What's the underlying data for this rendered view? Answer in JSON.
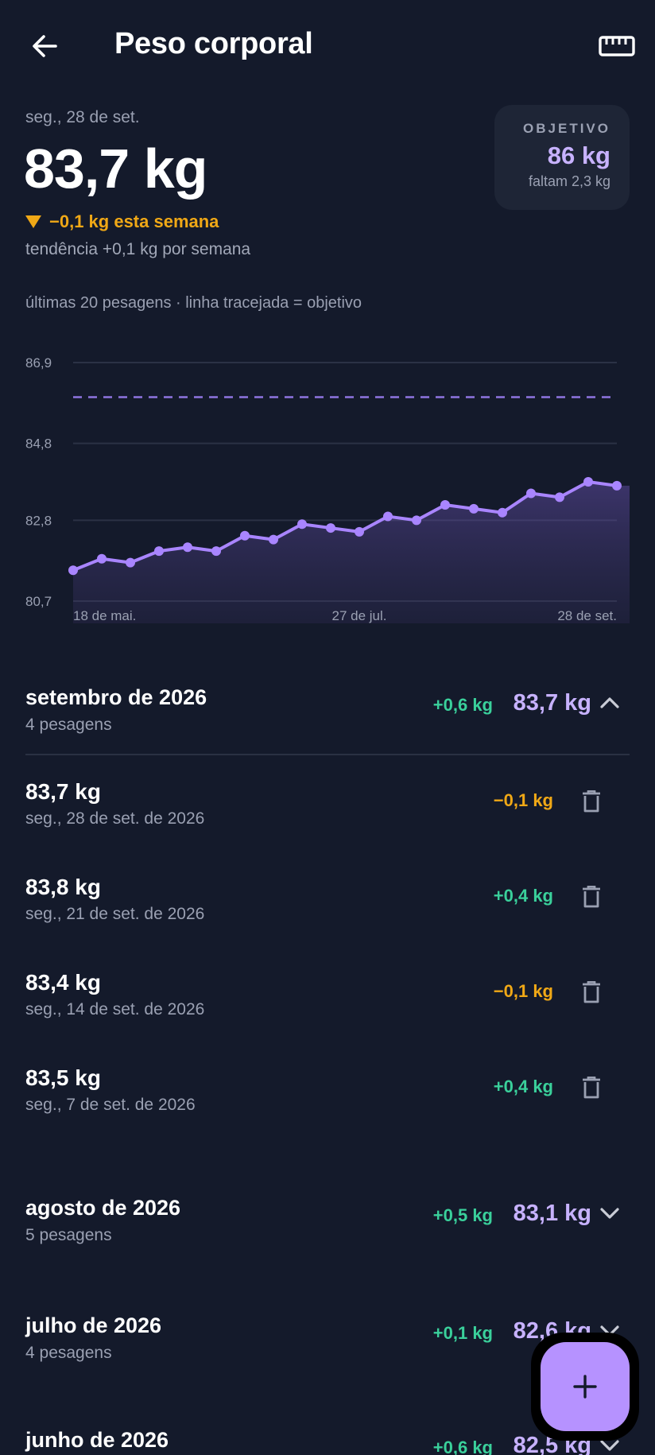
{
  "header": {
    "title": "Peso corporal",
    "back_icon": "arrow-left-icon",
    "action_icon": "ruler-icon"
  },
  "summary": {
    "date": "seg., 28 de set.",
    "weight": "83,7 kg",
    "week_change": "−0,1 kg esta semana",
    "trend": "tendência +0,1 kg por semana"
  },
  "goal": {
    "label": "OBJETIVO",
    "value": "86 kg",
    "remaining": "faltam 2,3 kg"
  },
  "chart_caption": "últimas 20 pesagens · linha tracejada = objetivo",
  "chart_data": {
    "type": "line",
    "y_tick_labels": [
      "86,9",
      "84,8",
      "82,8",
      "80,7"
    ],
    "y_ticks": [
      86.9,
      84.8,
      82.8,
      80.7
    ],
    "ylim": [
      80.7,
      86.9
    ],
    "x_tick_labels": [
      "18 de mai.",
      "27 de jul.",
      "28 de set."
    ],
    "goal": 86.0,
    "values": [
      81.5,
      81.8,
      81.7,
      82.0,
      82.1,
      82.0,
      82.4,
      82.3,
      82.7,
      82.6,
      82.5,
      82.9,
      82.8,
      83.2,
      83.1,
      83.0,
      83.5,
      83.4,
      83.8,
      83.7
    ],
    "grid": true,
    "line_color": "#a985ff",
    "goal_color": "#8f74e0"
  },
  "months": [
    {
      "title": "setembro de 2026",
      "count": "4 pesagens",
      "delta": "+0,6 kg",
      "weight": "83,7 kg",
      "expanded": true
    },
    {
      "title": "agosto de 2026",
      "count": "5 pesagens",
      "delta": "+0,5 kg",
      "weight": "83,1 kg",
      "expanded": false
    },
    {
      "title": "julho de 2026",
      "count": "4 pesagens",
      "delta": "+0,1 kg",
      "weight": "82,6 kg",
      "expanded": false
    },
    {
      "title": "junho de 2026",
      "count": "",
      "delta": "+0,6 kg",
      "weight": "82,5 kg",
      "expanded": false
    }
  ],
  "entries": [
    {
      "weight": "83,7 kg",
      "date": "seg., 28 de set. de 2026",
      "delta": "−0,1 kg"
    },
    {
      "weight": "83,8 kg",
      "date": "seg., 21 de set. de 2026",
      "delta": "+0,4 kg"
    },
    {
      "weight": "83,4 kg",
      "date": "seg., 14 de set. de 2026",
      "delta": "−0,1 kg"
    },
    {
      "weight": "83,5 kg",
      "date": "seg., 7 de set. de 2026",
      "delta": "+0,4 kg"
    }
  ],
  "fab_icon": "plus-icon",
  "colors": {
    "background": "#141a2b",
    "accent": "#b692ff",
    "up": "#3ad09b",
    "down": "#f0a816"
  }
}
